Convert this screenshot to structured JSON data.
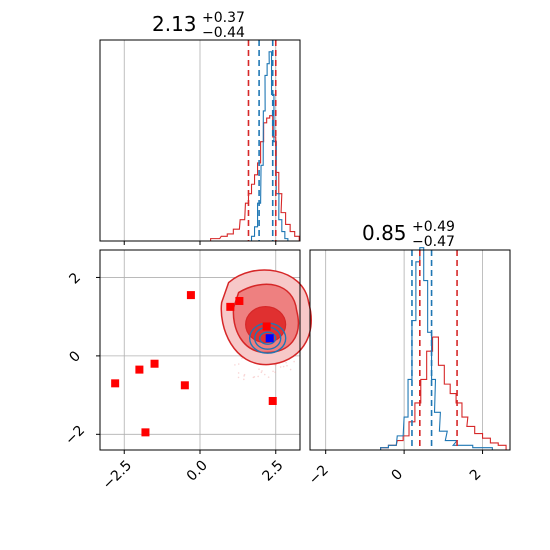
{
  "colors": {
    "red": "#d62728",
    "blue": "#1f77b4",
    "grid": "#b0b0b0",
    "marker_red": "#ff0000",
    "marker_blue": "#0000ff"
  },
  "chart_data": [
    {
      "type": "histogram",
      "panel": "top-left",
      "title": {
        "value": "2.13",
        "upper": "+0.37",
        "lower": "−0.44"
      },
      "xlim": [
        -3.3,
        3.3
      ],
      "quantile_lines": {
        "red": [
          1.6,
          2.5
        ],
        "blue": [
          1.95,
          2.4
        ]
      },
      "series": [
        {
          "color": "red",
          "x": [
            0.5,
            0.8,
            1.0,
            1.2,
            1.4,
            1.55,
            1.65,
            1.75,
            1.85,
            1.95,
            2.05,
            2.15,
            2.25,
            2.35,
            2.45,
            2.55,
            2.65,
            2.75,
            2.9,
            3.05,
            3.2
          ],
          "y": [
            0.01,
            0.02,
            0.03,
            0.05,
            0.09,
            0.16,
            0.2,
            0.24,
            0.28,
            0.33,
            0.42,
            0.5,
            0.52,
            0.53,
            0.44,
            0.29,
            0.2,
            0.12,
            0.07,
            0.04,
            0.02
          ]
        },
        {
          "color": "blue",
          "x": [
            1.75,
            1.85,
            1.95,
            2.05,
            2.12,
            2.18,
            2.25,
            2.32,
            2.4,
            2.48,
            2.56,
            2.65,
            2.75,
            2.85
          ],
          "y": [
            0.02,
            0.06,
            0.16,
            0.32,
            0.55,
            0.7,
            0.75,
            0.8,
            0.62,
            0.42,
            0.2,
            0.09,
            0.04,
            0.01
          ]
        }
      ]
    },
    {
      "type": "scatter",
      "panel": "bottom-left",
      "xlim": [
        -3.3,
        3.3
      ],
      "ylim": [
        -2.4,
        2.7
      ],
      "x_ticks": [
        -2.5,
        0.0,
        2.5
      ],
      "x_tick_labels": [
        "−2.5",
        "0.0",
        "2.5"
      ],
      "y_ticks": [
        -2,
        0,
        2
      ],
      "y_tick_labels": [
        "−2",
        "0",
        "2"
      ],
      "red_squares": [
        {
          "x": -2.8,
          "y": -0.7
        },
        {
          "x": -2.0,
          "y": -0.35
        },
        {
          "x": -1.5,
          "y": -0.2
        },
        {
          "x": -1.8,
          "y": -1.95
        },
        {
          "x": -0.5,
          "y": -0.75
        },
        {
          "x": -0.3,
          "y": 1.55
        },
        {
          "x": 1.0,
          "y": 1.25
        },
        {
          "x": 1.3,
          "y": 1.4
        },
        {
          "x": 2.2,
          "y": 0.75
        },
        {
          "x": 2.4,
          "y": -1.15
        }
      ],
      "blue_square": {
        "x": 2.3,
        "y": 0.45
      },
      "contour_centers": {
        "red": {
          "x": 2.1,
          "y": 0.85
        },
        "blue": {
          "x": 2.3,
          "y": 0.45
        }
      }
    },
    {
      "type": "histogram",
      "panel": "bottom-right",
      "title": {
        "value": "0.85",
        "upper": "+0.49",
        "lower": "−0.47"
      },
      "xlim": [
        -2.4,
        2.7
      ],
      "x_ticks": [
        -2,
        0,
        2
      ],
      "x_tick_labels": [
        "−2",
        "0",
        "2"
      ],
      "quantile_lines": {
        "red": [
          0.4,
          1.35
        ],
        "blue": [
          0.2,
          0.7
        ]
      },
      "series": [
        {
          "color": "red",
          "x": [
            -0.5,
            -0.3,
            -0.1,
            0.05,
            0.2,
            0.35,
            0.5,
            0.65,
            0.8,
            0.95,
            1.1,
            1.25,
            1.4,
            1.55,
            1.7,
            1.9,
            2.1,
            2.3,
            2.5
          ],
          "y": [
            0.01,
            0.02,
            0.04,
            0.06,
            0.12,
            0.2,
            0.3,
            0.42,
            0.48,
            0.36,
            0.28,
            0.24,
            0.2,
            0.14,
            0.1,
            0.07,
            0.05,
            0.03,
            0.02
          ]
        },
        {
          "color": "blue",
          "x": [
            -0.5,
            -0.3,
            -0.1,
            0.05,
            0.15,
            0.25,
            0.35,
            0.45,
            0.55,
            0.65,
            0.75,
            0.85,
            1.0,
            1.2,
            1.5,
            2.0
          ],
          "y": [
            0.01,
            0.02,
            0.06,
            0.14,
            0.3,
            0.55,
            0.8,
            0.86,
            0.72,
            0.5,
            0.3,
            0.16,
            0.08,
            0.04,
            0.02,
            0.01
          ]
        }
      ]
    }
  ]
}
